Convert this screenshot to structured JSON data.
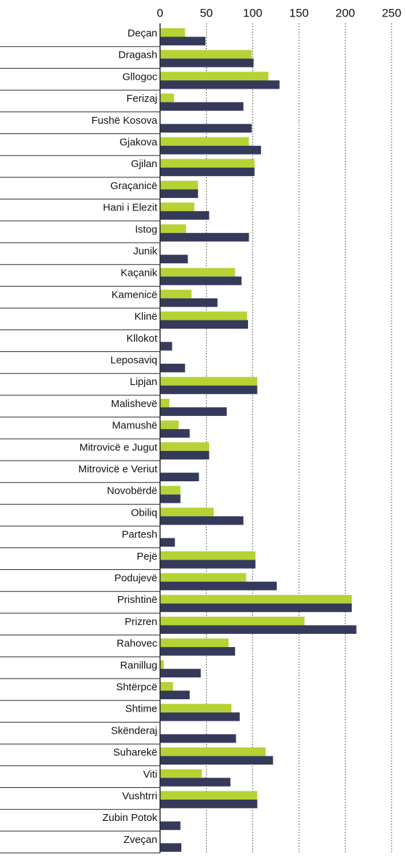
{
  "chart_data": {
    "type": "bar",
    "orientation": "horizontal",
    "categories": [
      "Deçan",
      "Dragash",
      "Gllogoc",
      "Ferizaj",
      "Fushë Kosova",
      "Gjakova",
      "Gjilan",
      "Graçanicë",
      "Hani i Elezit",
      "Istog",
      "Junik",
      "Kaçanik",
      "Kamenicë",
      "Klinë",
      "Kllokot",
      "Leposaviq",
      "Lipjan",
      "Malishevë",
      "Mamushë",
      "Mitrovicë e Jugut",
      "Mitrovicë e Veriut",
      "Novobërdë",
      "Obiliq",
      "Partesh",
      "Pejë",
      "Podujevë",
      "Prishtinë",
      "Prizren",
      "Rahovec",
      "Ranillug",
      "Shtërpcë",
      "Shtime",
      "Skënderaj",
      "Suharekë",
      "Viti",
      "Vushtrri",
      "Zubin Potok",
      "Zveçan"
    ],
    "series": [
      {
        "color": "#b5d334",
        "values": [
          27,
          99,
          117,
          15,
          0,
          96,
          102,
          41,
          37,
          28,
          0,
          81,
          34,
          94,
          0,
          0,
          105,
          10,
          20,
          53,
          0,
          22,
          58,
          0,
          103,
          93,
          207,
          156,
          74,
          4,
          14,
          77,
          0,
          114,
          45,
          105,
          0,
          0
        ]
      },
      {
        "color": "#363a5a",
        "values": [
          49,
          101,
          129,
          90,
          99,
          109,
          102,
          41,
          53,
          96,
          30,
          88,
          62,
          95,
          13,
          27,
          105,
          72,
          32,
          53,
          42,
          22,
          90,
          16,
          103,
          126,
          207,
          212,
          81,
          44,
          32,
          86,
          82,
          122,
          76,
          105,
          22,
          23
        ]
      }
    ],
    "xlim": [
      0,
      250
    ],
    "xticks": [
      0,
      50,
      100,
      150,
      200,
      250
    ],
    "grid": true
  }
}
